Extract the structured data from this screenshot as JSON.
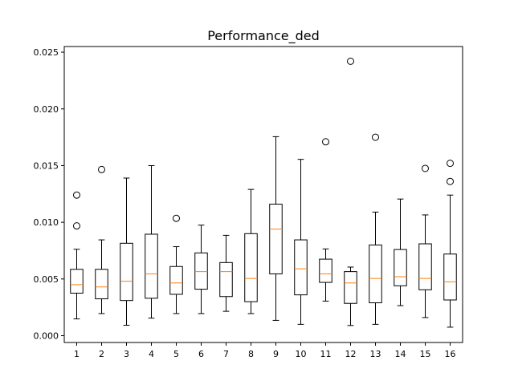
{
  "chart_data": {
    "type": "boxplot",
    "title": "Performance_ded",
    "xlabel": "",
    "ylabel": "",
    "ylim": [
      -0.0006,
      0.0255
    ],
    "xlim": [
      0.5,
      16.5
    ],
    "y_ticks": [
      "0.000",
      "0.005",
      "0.010",
      "0.015",
      "0.020",
      "0.025"
    ],
    "categories": [
      "1",
      "2",
      "3",
      "4",
      "5",
      "6",
      "7",
      "8",
      "9",
      "10",
      "11",
      "12",
      "13",
      "14",
      "15",
      "16"
    ],
    "boxes": [
      {
        "label": "1",
        "whisker_low": 0.00148,
        "q1": 0.00375,
        "median": 0.0045,
        "q3": 0.00585,
        "whisker_high": 0.00762,
        "outliers": [
          0.00968,
          0.0124
        ]
      },
      {
        "label": "2",
        "whisker_low": 0.00195,
        "q1": 0.00325,
        "median": 0.0043,
        "q3": 0.00585,
        "whisker_high": 0.00845,
        "outliers": [
          0.01465
        ]
      },
      {
        "label": "3",
        "whisker_low": 0.00092,
        "q1": 0.0031,
        "median": 0.0048,
        "q3": 0.00815,
        "whisker_high": 0.0139,
        "outliers": []
      },
      {
        "label": "4",
        "whisker_low": 0.00155,
        "q1": 0.0033,
        "median": 0.00545,
        "q3": 0.00895,
        "whisker_high": 0.015,
        "outliers": []
      },
      {
        "label": "5",
        "whisker_low": 0.00195,
        "q1": 0.00365,
        "median": 0.00465,
        "q3": 0.0061,
        "whisker_high": 0.00785,
        "outliers": [
          0.01035
        ]
      },
      {
        "label": "6",
        "whisker_low": 0.00195,
        "q1": 0.0041,
        "median": 0.00565,
        "q3": 0.0073,
        "whisker_high": 0.00975,
        "outliers": []
      },
      {
        "label": "7",
        "whisker_low": 0.00215,
        "q1": 0.00345,
        "median": 0.00565,
        "q3": 0.00645,
        "whisker_high": 0.00885,
        "outliers": []
      },
      {
        "label": "8",
        "whisker_low": 0.00195,
        "q1": 0.003,
        "median": 0.00505,
        "q3": 0.009,
        "whisker_high": 0.0129,
        "outliers": []
      },
      {
        "label": "9",
        "whisker_low": 0.00135,
        "q1": 0.00545,
        "median": 0.0094,
        "q3": 0.0116,
        "whisker_high": 0.01755,
        "outliers": []
      },
      {
        "label": "10",
        "whisker_low": 0.001,
        "q1": 0.0036,
        "median": 0.0059,
        "q3": 0.00845,
        "whisker_high": 0.01555,
        "outliers": []
      },
      {
        "label": "11",
        "whisker_low": 0.00305,
        "q1": 0.0047,
        "median": 0.00545,
        "q3": 0.00675,
        "whisker_high": 0.00765,
        "outliers": [
          0.0171
        ]
      },
      {
        "label": "12",
        "whisker_low": 0.0009,
        "q1": 0.00285,
        "median": 0.00465,
        "q3": 0.00565,
        "whisker_high": 0.00605,
        "outliers": [
          0.0242
        ]
      },
      {
        "label": "13",
        "whisker_low": 0.001,
        "q1": 0.0029,
        "median": 0.00505,
        "q3": 0.008,
        "whisker_high": 0.0109,
        "outliers": [
          0.0175
        ]
      },
      {
        "label": "14",
        "whisker_low": 0.00265,
        "q1": 0.0044,
        "median": 0.0052,
        "q3": 0.0076,
        "whisker_high": 0.01205,
        "outliers": []
      },
      {
        "label": "15",
        "whisker_low": 0.0016,
        "q1": 0.00405,
        "median": 0.00505,
        "q3": 0.0081,
        "whisker_high": 0.01065,
        "outliers": [
          0.01475
        ]
      },
      {
        "label": "16",
        "whisker_low": 0.00075,
        "q1": 0.00315,
        "median": 0.00475,
        "q3": 0.0072,
        "whisker_high": 0.0124,
        "outliers": [
          0.0136,
          0.0152
        ]
      }
    ],
    "colors": {
      "box": "#000000",
      "median": "#ff7f0e",
      "outlier": "#000000",
      "background": "#ffffff"
    },
    "grid": false,
    "legend": "none"
  }
}
